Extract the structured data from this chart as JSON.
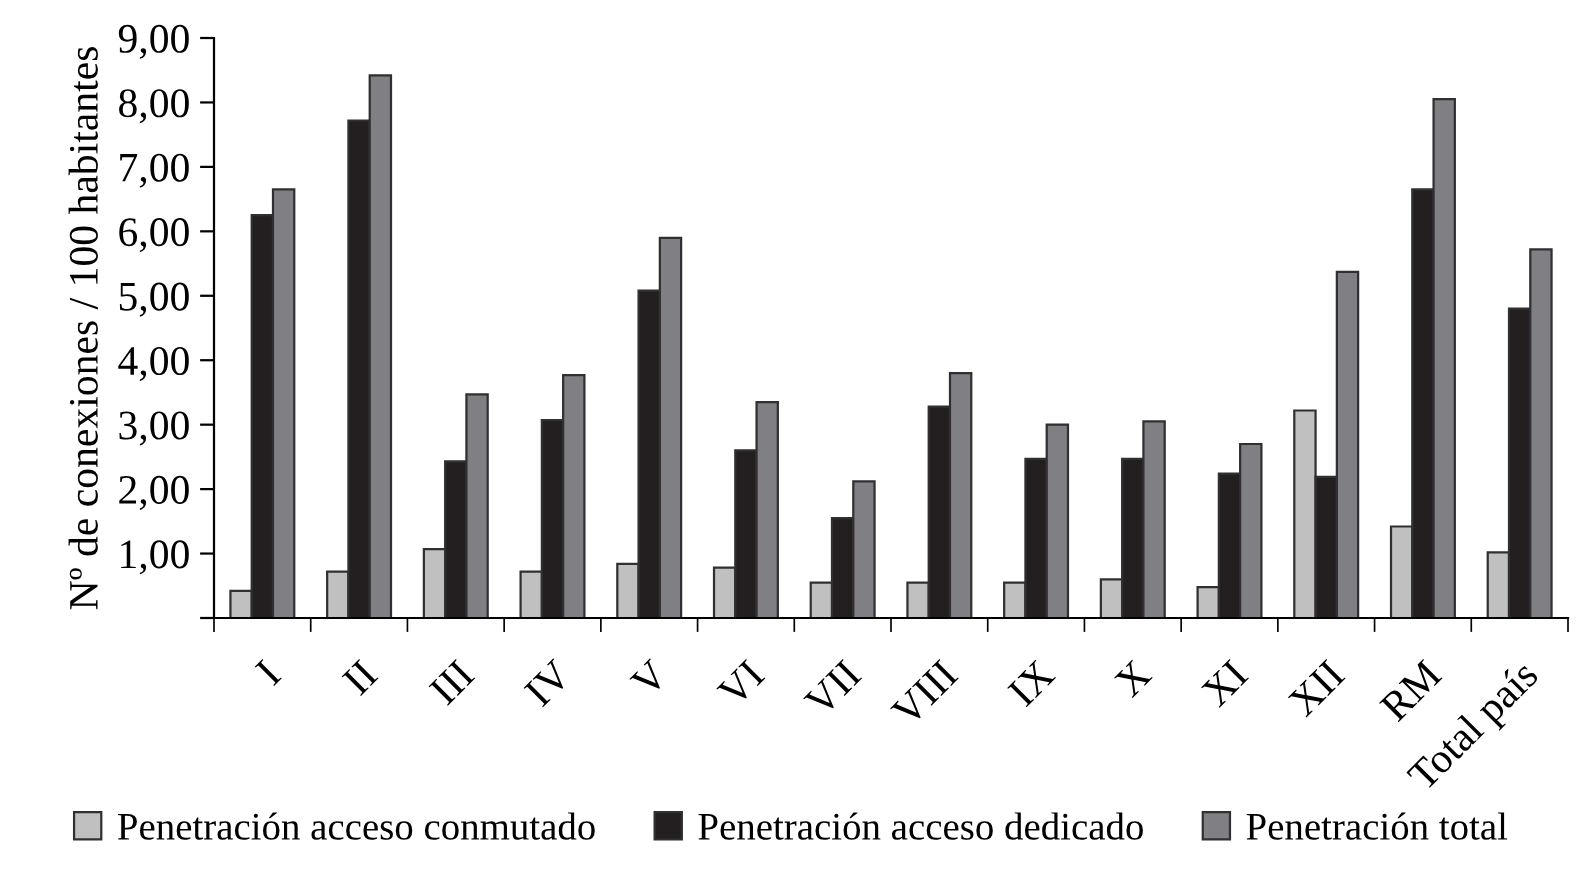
{
  "chart_data": {
    "type": "bar",
    "ylabel": "Nº de conexiones / 100 habitantes",
    "categories": [
      "I",
      "II",
      "III",
      "IV",
      "V",
      "VI",
      "VII",
      "VIII",
      "IX",
      "X",
      "XI",
      "XII",
      "RM",
      "Total país"
    ],
    "series": [
      {
        "name": "Penetración acceso conmutado",
        "color": "#c0c0c0",
        "values": [
          0.42,
          0.72,
          1.07,
          0.72,
          0.84,
          0.78,
          0.55,
          0.55,
          0.55,
          0.6,
          0.48,
          3.22,
          1.42,
          1.02
        ]
      },
      {
        "name": "Penetración acceso dedicado",
        "color": "#231f20",
        "values": [
          6.25,
          7.72,
          2.43,
          3.07,
          5.08,
          2.6,
          1.55,
          3.28,
          2.47,
          2.47,
          2.24,
          2.19,
          6.65,
          4.8
        ]
      },
      {
        "name": "Penetración total",
        "color": "#7f7f84",
        "values": [
          6.65,
          8.42,
          3.47,
          3.77,
          5.9,
          3.35,
          2.12,
          3.8,
          3.0,
          3.05,
          2.7,
          5.37,
          8.05,
          5.72
        ]
      }
    ],
    "ylim": [
      0,
      9
    ],
    "yticks": [
      {
        "value": 0,
        "label": null
      },
      {
        "value": 1,
        "label": "1,00"
      },
      {
        "value": 2,
        "label": "2,00"
      },
      {
        "value": 3,
        "label": "3,00"
      },
      {
        "value": 4,
        "label": "4,00"
      },
      {
        "value": 5,
        "label": "5,00"
      },
      {
        "value": 6,
        "label": "6,00"
      },
      {
        "value": 7,
        "label": "7,00"
      },
      {
        "value": 8,
        "label": "8,00"
      },
      {
        "value": 9,
        "label": "9,00"
      }
    ],
    "grid": false,
    "legend": "bottom"
  }
}
